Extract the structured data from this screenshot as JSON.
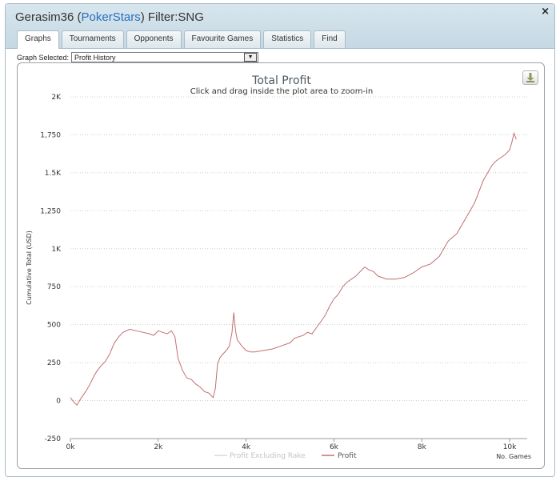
{
  "window": {
    "player": "Gerasim36",
    "site_open": "(",
    "site": "PokerStars",
    "site_close": ")",
    "filter": "Filter:SNG",
    "close_glyph": "×"
  },
  "tabs": [
    {
      "label": "Graphs",
      "active": true
    },
    {
      "label": "Tournaments",
      "active": false
    },
    {
      "label": "Opponents",
      "active": false
    },
    {
      "label": "Favourite Games",
      "active": false
    },
    {
      "label": "Statistics",
      "active": false
    },
    {
      "label": "Find",
      "active": false
    }
  ],
  "graph_selector": {
    "label": "Graph Selected:",
    "value": "Profit History",
    "arrow_glyph": "▼"
  },
  "export_icon": "download-icon",
  "colors": {
    "profit_line": "#c26f72",
    "excluding_rake_line": "#d9d9d9",
    "title_text": "#4d5a63",
    "gridline": "#cfcfcf"
  },
  "chart_data": {
    "type": "line",
    "title": "Total Profit",
    "subtitle": "Click and drag inside the plot area to zoom-in",
    "ylabel": "Cumulative Total (USD)",
    "xlabel": "No. Games",
    "ylim": [
      -250,
      2000
    ],
    "xlim": [
      0,
      10400
    ],
    "y_ticks": [
      -250,
      0,
      250,
      500,
      750,
      1000,
      1250,
      1500,
      1750,
      2000
    ],
    "y_tick_labels": [
      "-250",
      "0",
      "250",
      "500",
      "750",
      "1K",
      "1,250",
      "1.5K",
      "1,750",
      "2K"
    ],
    "x_ticks": [
      0,
      2000,
      4000,
      6000,
      8000,
      10000
    ],
    "x_tick_labels": [
      "0k",
      "2k",
      "4k",
      "6k",
      "8k",
      "10k"
    ],
    "grid": true,
    "legend_position": "bottom-center",
    "series": [
      {
        "name": "Profit Excluding Rake",
        "values": []
      },
      {
        "name": "Profit",
        "x": [
          0,
          80,
          150,
          250,
          350,
          450,
          550,
          620,
          700,
          800,
          900,
          1000,
          1100,
          1200,
          1350,
          1500,
          1650,
          1800,
          1900,
          2000,
          2100,
          2200,
          2300,
          2380,
          2450,
          2550,
          2650,
          2750,
          2850,
          2950,
          3050,
          3150,
          3250,
          3300,
          3350,
          3400,
          3450,
          3550,
          3620,
          3680,
          3720,
          3760,
          3800,
          3900,
          4000,
          4100,
          4200,
          4400,
          4600,
          4800,
          5000,
          5100,
          5200,
          5300,
          5400,
          5500,
          5600,
          5800,
          5900,
          6000,
          6100,
          6200,
          6300,
          6400,
          6500,
          6600,
          6700,
          6800,
          6900,
          7000,
          7200,
          7400,
          7600,
          7800,
          8000,
          8200,
          8400,
          8500,
          8600,
          8800,
          9000,
          9200,
          9400,
          9500,
          9600,
          9700,
          9800,
          9900,
          10000,
          10050,
          10100,
          10150
        ],
        "values": [
          20,
          -10,
          -30,
          20,
          60,
          110,
          170,
          200,
          230,
          260,
          310,
          380,
          420,
          450,
          470,
          460,
          450,
          440,
          430,
          460,
          450,
          440,
          460,
          420,
          280,
          200,
          150,
          140,
          110,
          90,
          60,
          50,
          20,
          80,
          240,
          280,
          300,
          330,
          360,
          450,
          580,
          460,
          400,
          360,
          330,
          320,
          320,
          330,
          340,
          360,
          380,
          410,
          420,
          430,
          450,
          440,
          480,
          560,
          620,
          670,
          700,
          750,
          780,
          800,
          820,
          850,
          880,
          860,
          850,
          820,
          800,
          800,
          810,
          840,
          880,
          900,
          950,
          1000,
          1050,
          1100,
          1200,
          1300,
          1450,
          1500,
          1550,
          1580,
          1600,
          1620,
          1650,
          1700,
          1760,
          1720
        ]
      }
    ]
  }
}
